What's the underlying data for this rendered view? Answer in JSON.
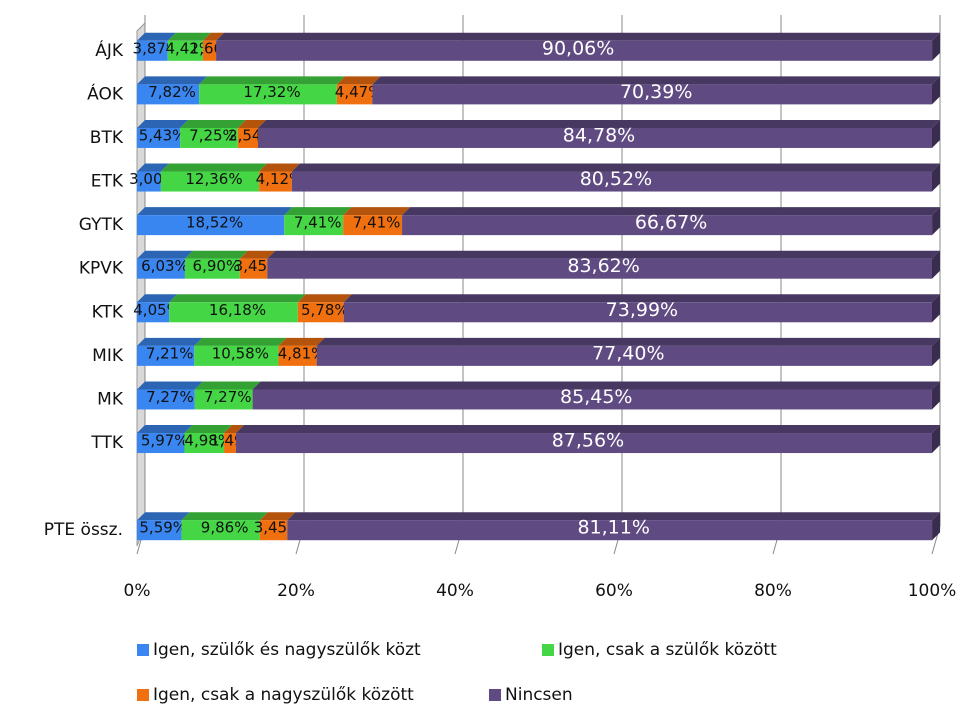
{
  "chart_data": {
    "type": "stacked_bar_horizontal",
    "categories": [
      "ÁJK",
      "ÁOK",
      "BTK",
      "ETK",
      "GYTK",
      "KPVK",
      "KTK",
      "MIK",
      "MK",
      "TTK",
      null,
      "PTE össz."
    ],
    "series": [
      {
        "name": "Igen, szülők és nagyszülők közt",
        "color": "#3a86f0",
        "values": [
          3.87,
          7.82,
          5.43,
          3.0,
          18.52,
          6.03,
          4.05,
          7.21,
          7.27,
          5.97,
          null,
          5.59
        ],
        "value_labels": [
          "3,87%",
          "7,82%",
          "5,43%",
          "3,00%",
          "18,52%",
          "6,03%",
          "4,05%",
          "7,21%",
          "7,27%",
          "5,97%",
          null,
          "5,59%"
        ]
      },
      {
        "name": "Igen, csak a szülők között",
        "color": "#44d644",
        "values": [
          4.42,
          17.32,
          7.25,
          12.36,
          7.41,
          6.9,
          16.18,
          10.58,
          7.27,
          4.98,
          null,
          9.86
        ],
        "value_labels": [
          "4,42%",
          "17,32%",
          "7,25%",
          "12,36%",
          "7,41%",
          "6,90%",
          "16,18%",
          "10,58%",
          "7,27%",
          "4,98%",
          null,
          "9,86%"
        ]
      },
      {
        "name": "Igen, csak a nagyszülők között",
        "color": "#f07010",
        "values": [
          1.66,
          4.47,
          2.54,
          4.12,
          7.41,
          3.45,
          5.78,
          4.81,
          null,
          1.49,
          null,
          3.45
        ],
        "value_labels": [
          "1,66%",
          "4,47%",
          "2,54%",
          "4,12%",
          "7,41%",
          "3,45%",
          "5,78%",
          "4,81%",
          null,
          "1,49%",
          null,
          "3,45%"
        ]
      },
      {
        "name": "Nincsen",
        "color": "#5f4a82",
        "values": [
          90.06,
          70.39,
          84.78,
          80.52,
          66.67,
          83.62,
          73.99,
          77.4,
          85.45,
          87.56,
          null,
          81.11
        ],
        "value_labels": [
          "90,06%",
          "70,39%",
          "84,78%",
          "80,52%",
          "66,67%",
          "83,62%",
          "73,99%",
          "77,40%",
          "85,45%",
          "87,56%",
          null,
          "81,11%"
        ]
      }
    ],
    "xlim": [
      0,
      100
    ],
    "xticks": [
      {
        "value": 0,
        "label": "0%"
      },
      {
        "value": 20,
        "label": "20%"
      },
      {
        "value": 40,
        "label": "40%"
      },
      {
        "value": 60,
        "label": "60%"
      },
      {
        "value": 80,
        "label": "80%"
      },
      {
        "value": 100,
        "label": "100%"
      }
    ],
    "grid": true
  }
}
